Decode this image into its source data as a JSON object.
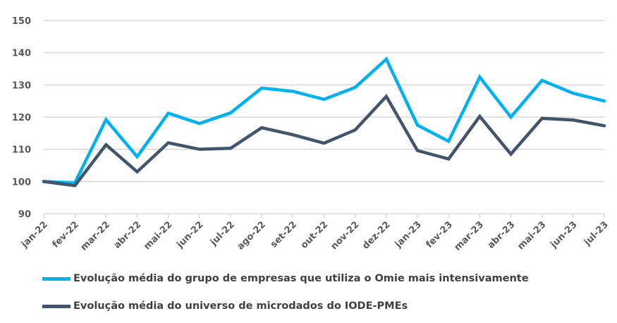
{
  "chart_data": {
    "type": "line",
    "categories": [
      "jan-22",
      "fev-22",
      "mar-22",
      "abr-22",
      "mai-22",
      "jun-22",
      "jul-22",
      "ago-22",
      "set-22",
      "out-22",
      "nov-22",
      "dez-22",
      "jan-23",
      "fev-23",
      "mar-23",
      "abr-23",
      "mai-23",
      "jun-23",
      "jul-23"
    ],
    "ylim": [
      90,
      150
    ],
    "yticks": [
      90,
      100,
      110,
      120,
      130,
      140,
      150
    ],
    "grid": true,
    "legend_position": "bottom",
    "series": [
      {
        "name": "Evolução média do grupo de empresas que utiliza o Omie mais intensivamente",
        "color": "#00B0F0",
        "values": [
          100,
          99.6,
          119.2,
          107.7,
          121.2,
          118,
          121.3,
          129,
          128,
          125.5,
          129.2,
          138,
          117.5,
          112.5,
          132.4,
          120,
          131.4,
          127.4,
          125
        ]
      },
      {
        "name": "Evolução média do universo de microdados do IODE-PMEs",
        "color": "#44546A",
        "values": [
          100,
          98.7,
          111.4,
          103,
          112,
          110,
          110.3,
          116.7,
          114.5,
          111.9,
          116,
          126.4,
          109.6,
          107,
          120.2,
          108.5,
          119.6,
          119.1,
          117.3
        ]
      }
    ]
  }
}
